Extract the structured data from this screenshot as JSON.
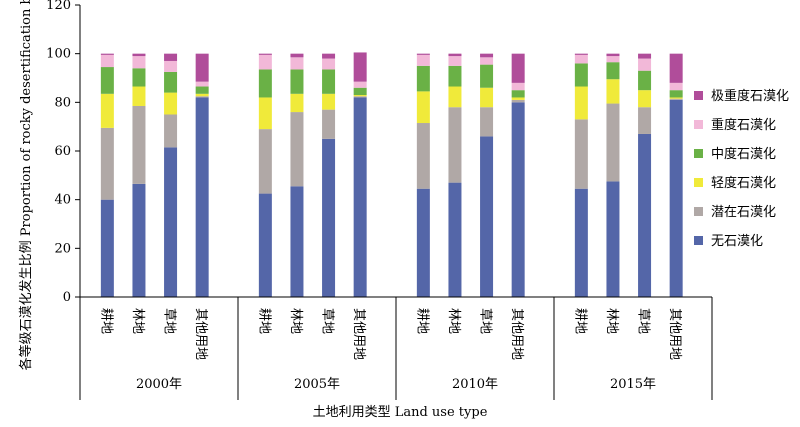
{
  "chart_data": {
    "type": "bar",
    "stacked": true,
    "ylabel": "各等级石漠化发生比例 Proportion of rocky desertification by grade/%",
    "xlabel": "土地利用类型 Land use type",
    "ylim": [
      0,
      120
    ],
    "yticks": [
      0,
      20,
      40,
      60,
      80,
      100,
      120
    ],
    "grid": false,
    "legend_position": "right",
    "groups": [
      {
        "year": "2000年",
        "categories": [
          "耕地",
          "林地",
          "草地",
          "其他用地"
        ]
      },
      {
        "year": "2005年",
        "categories": [
          "耕地",
          "林地",
          "草地",
          "其他用地"
        ]
      },
      {
        "year": "2010年",
        "categories": [
          "耕地",
          "林地",
          "草地",
          "其他用地"
        ]
      },
      {
        "year": "2015年",
        "categories": [
          "耕地",
          "林地",
          "草地",
          "其他用地"
        ]
      }
    ],
    "series": [
      {
        "name": "无石漠化",
        "color": "#5466a8",
        "values": [
          40,
          46.5,
          61.5,
          82,
          42.5,
          45.5,
          65,
          82,
          44.5,
          47,
          66,
          80,
          44.5,
          47.5,
          67,
          81
        ]
      },
      {
        "name": "潜在石漠化",
        "color": "#b0a8a6",
        "values": [
          29.5,
          32,
          13.5,
          0.5,
          26.5,
          30.5,
          12,
          0.5,
          27,
          31,
          12,
          1,
          28.5,
          32,
          11,
          0.5
        ]
      },
      {
        "name": "轻度石漠化",
        "color": "#f0ea3a",
        "values": [
          14,
          8,
          9,
          1,
          13,
          7.5,
          6.5,
          0.5,
          13,
          8.5,
          8,
          1,
          13.5,
          10,
          7,
          0.5
        ]
      },
      {
        "name": "中度石漠化",
        "color": "#6ab146",
        "values": [
          11,
          7.5,
          8.5,
          3,
          11.5,
          10,
          10,
          3,
          10.5,
          8.5,
          9.5,
          3,
          9.5,
          7,
          8,
          3
        ]
      },
      {
        "name": "重度石漠化",
        "color": "#f2b8d8",
        "values": [
          5,
          5,
          4.5,
          2,
          6,
          5,
          4.5,
          2.5,
          4.5,
          4,
          3,
          3,
          3.5,
          2.5,
          5,
          3
        ]
      },
      {
        "name": "极重度石漠化",
        "color": "#b04d9a",
        "values": [
          0.5,
          1,
          3,
          11.5,
          0.5,
          1.5,
          2,
          12,
          0.5,
          1,
          1.5,
          12,
          0.5,
          1,
          2,
          12
        ]
      }
    ]
  }
}
